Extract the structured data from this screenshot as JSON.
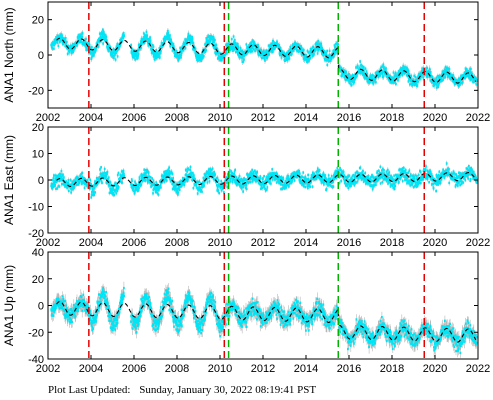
{
  "footer": {
    "label": "Plot Last Updated:",
    "timestamp": "Sunday, January 30, 2022 08:19:41 PST"
  },
  "colors": {
    "observation": "#00e5f5",
    "error_bar": "#b8b8b8",
    "model": "#000000",
    "earthquake_line": "#e60000",
    "equipment_line": "#00b400"
  },
  "chart_data": [
    {
      "type": "scatter",
      "ylabel": "ANA1 North (mm)",
      "xlim": [
        2002,
        2022
      ],
      "ylim": [
        -30,
        30
      ],
      "xticks": [
        "2002",
        "2004",
        "2006",
        "2008",
        "2010",
        "2012",
        "2014",
        "2016",
        "2018",
        "2020",
        "2022"
      ],
      "yticks": [
        "20",
        "0",
        "-20"
      ],
      "ytick_values": [
        20,
        0,
        -20
      ],
      "offsets": [
        {
          "t": 2015.5,
          "dy": -12.0
        }
      ],
      "model": {
        "t0": 2002.5,
        "y0": 6.5,
        "slope": -0.4,
        "amplitude": 3.0
      },
      "scatter_spread": 3.0,
      "seasonal_extra": 4.0,
      "red_lines": [
        2003.9,
        2010.2,
        2019.5
      ],
      "green_lines": [
        2010.4,
        2015.5
      ]
    },
    {
      "type": "scatter",
      "ylabel": "ANA1 East (mm)",
      "xlim": [
        2002,
        2022
      ],
      "ylim": [
        -20,
        20
      ],
      "xticks": [
        "2002",
        "2004",
        "2006",
        "2008",
        "2010",
        "2012",
        "2014",
        "2016",
        "2018",
        "2020",
        "2022"
      ],
      "yticks": [
        "20",
        "10",
        "0",
        "-10",
        "-20"
      ],
      "ytick_values": [
        20,
        10,
        0,
        -10,
        -20
      ],
      "offsets": [],
      "model": {
        "t0": 2002.5,
        "y0": -1.0,
        "slope": 0.12,
        "amplitude": 1.5
      },
      "scatter_spread": 2.5,
      "seasonal_extra": 2.0,
      "red_lines": [
        2003.9,
        2010.2,
        2019.5
      ],
      "green_lines": [
        2010.4,
        2015.5
      ]
    },
    {
      "type": "scatter",
      "ylabel": "ANA1 Up (mm)",
      "xlim": [
        2002,
        2022
      ],
      "ylim": [
        -40,
        40
      ],
      "xticks": [
        "2002",
        "2004",
        "2006",
        "2008",
        "2010",
        "2012",
        "2014",
        "2016",
        "2018",
        "2020",
        "2022"
      ],
      "yticks": [
        "40",
        "20",
        "0",
        "-20",
        "-40"
      ],
      "ytick_values": [
        40,
        20,
        0,
        -20,
        -40
      ],
      "offsets": [
        {
          "t": 2015.5,
          "dy": -12.0
        }
      ],
      "model": {
        "t0": 2002.5,
        "y0": -2.0,
        "slope": -0.45,
        "amplitude": 5.0
      },
      "scatter_spread": 6.0,
      "seasonal_extra": 10.0,
      "red_lines": [
        2003.9,
        2010.2,
        2019.5
      ],
      "green_lines": [
        2010.4,
        2015.5
      ]
    }
  ]
}
